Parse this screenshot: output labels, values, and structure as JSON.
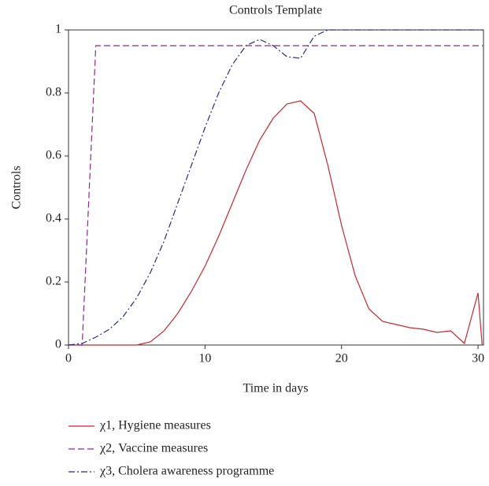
{
  "chart_data": {
    "type": "line",
    "title": "Controls Template",
    "xlabel": "Time in days",
    "ylabel": "Controls",
    "xlim": [
      0,
      30.4
    ],
    "xticks": [
      0,
      10,
      20,
      30
    ],
    "ylim": [
      0,
      1
    ],
    "yticks": [
      0,
      0.2,
      0.4,
      0.6,
      0.8,
      1
    ],
    "legend": "bottom",
    "series": [
      {
        "name": "χ1, Hygiene measures",
        "color": "#c8282d",
        "dash": "solid",
        "x": [
          0,
          1,
          2,
          3,
          4,
          5,
          6,
          7,
          8,
          9,
          10,
          11,
          12,
          13,
          14,
          15,
          16,
          17,
          18,
          19,
          20,
          21,
          22,
          23,
          24,
          25,
          26,
          27,
          28,
          29,
          30,
          30.3
        ],
        "values": [
          0,
          0,
          0,
          0,
          0,
          0,
          0.01,
          0.045,
          0.1,
          0.17,
          0.25,
          0.345,
          0.45,
          0.555,
          0.65,
          0.72,
          0.765,
          0.775,
          0.735,
          0.57,
          0.38,
          0.22,
          0.115,
          0.075,
          0.065,
          0.055,
          0.05,
          0.04,
          0.045,
          0.005,
          0.165,
          0
        ]
      },
      {
        "name": "χ2, Vaccine measures",
        "color": "#8b2a8b",
        "dash": "dashed",
        "x": [
          0,
          1,
          2,
          30.4
        ],
        "values": [
          0,
          0,
          0.95,
          0.95
        ]
      },
      {
        "name": "χ3, Cholera awareness programme",
        "color": "#2a2a8a",
        "dash": "dashdot",
        "x": [
          0,
          1,
          2,
          3,
          4,
          5,
          6,
          7,
          8,
          9,
          10,
          11,
          12,
          13,
          14,
          15,
          16,
          17,
          18,
          19,
          30.4
        ],
        "values": [
          0,
          0.005,
          0.025,
          0.05,
          0.09,
          0.15,
          0.23,
          0.33,
          0.45,
          0.57,
          0.69,
          0.8,
          0.89,
          0.95,
          0.97,
          0.95,
          0.915,
          0.91,
          0.98,
          1,
          1
        ]
      }
    ]
  }
}
